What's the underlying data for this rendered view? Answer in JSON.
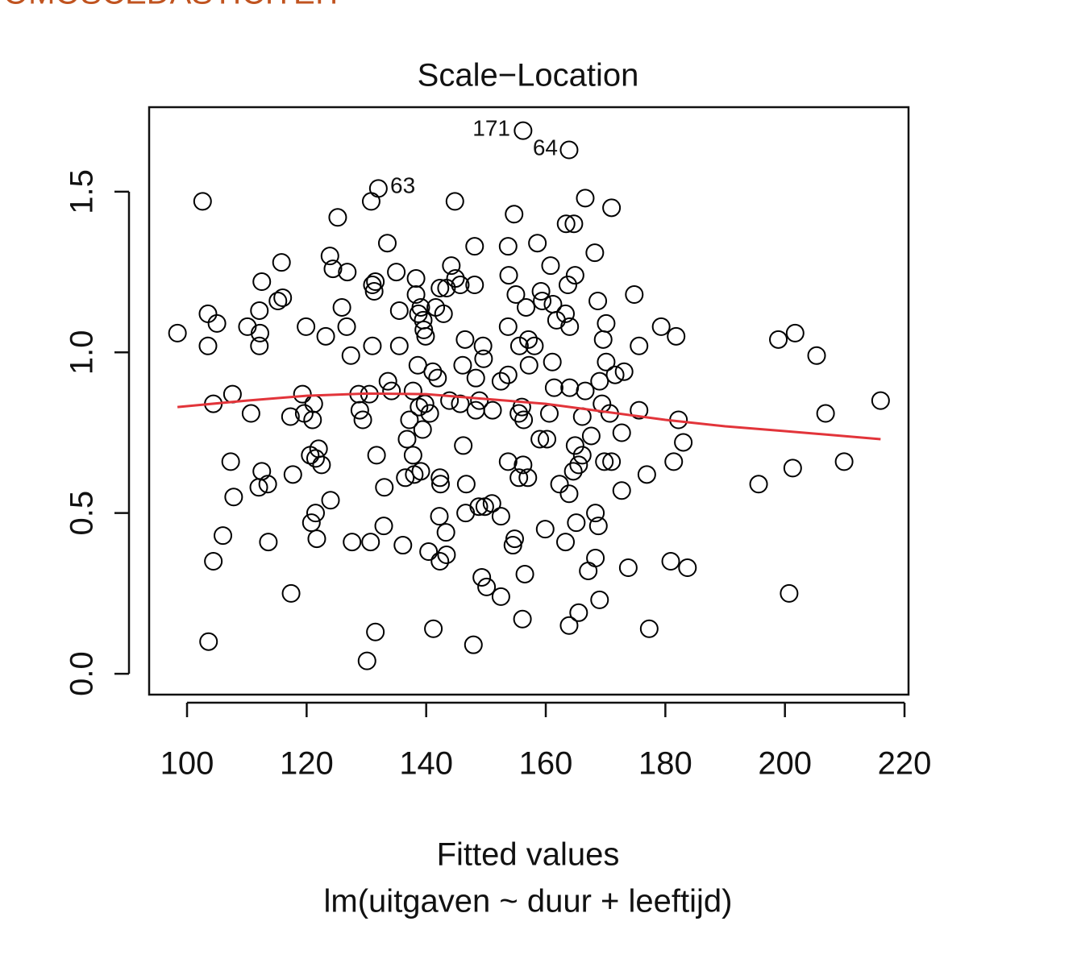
{
  "header": "OMOSCEDASTICITEIT",
  "chart_data": {
    "type": "scatter",
    "title": "Scale−Location",
    "x_label": "Fitted values",
    "caption": "lm(uitgaven ~ duur + leeftijd)",
    "annotations": [
      "171",
      "64",
      "63"
    ],
    "color": "#000000",
    "xlim": [
      93.66,
      220.67
    ],
    "ylim": [
      -0.065,
      1.763
    ],
    "xticks": [
      100,
      120,
      140,
      160,
      180,
      200,
      220
    ],
    "yticks": [
      {
        "value": 0,
        "label": "0.0"
      },
      0.5,
      {
        "value": 1,
        "label": "1.0"
      },
      1.5
    ],
    "x": [
      98.4,
      102.6,
      103.5,
      103.5,
      104.4,
      105,
      107.6,
      107.3,
      107.8,
      106,
      104.4,
      103.6,
      110.1,
      110.7,
      112.5,
      112.1,
      112.2,
      112.1,
      112.5,
      112,
      113.5,
      113.6,
      115.8,
      115.2,
      116,
      117.3,
      117.7,
      117.4,
      119.3,
      119.6,
      119.9,
      121.2,
      121,
      120.6,
      121.5,
      122,
      122.5,
      120.8,
      121.5,
      121.7,
      123.2,
      123.9,
      124.4,
      125.2,
      125.9,
      126.8,
      126.7,
      127.4,
      124,
      127.6,
      128.7,
      128.9,
      129.4,
      130.5,
      130.7,
      130.1,
      130.8,
      132,
      131,
      131.5,
      131.3,
      131,
      131.7,
      131.5,
      132.9,
      133,
      133.5,
      133.6,
      134.2,
      135,
      135.5,
      135.5,
      136.1,
      136.5,
      136.8,
      137.2,
      137.8,
      137.8,
      138,
      138.3,
      138.3,
      138.7,
      139.1,
      139.5,
      139.6,
      139.9,
      138.6,
      139.4,
      139.8,
      140.6,
      138.8,
      139.1,
      140.4,
      141.2,
      141.1,
      141.9,
      141.6,
      142.3,
      142.9,
      142.3,
      142.4,
      142.2,
      143.3,
      142.3,
      143.4,
      143.4,
      144.2,
      144.9,
      145.7,
      144.8,
      143.9,
      145.7,
      146.1,
      146.5,
      146.2,
      146.7,
      146.6,
      148.1,
      148.1,
      148.3,
      148.3,
      148.9,
      149.5,
      149.6,
      148.8,
      149.8,
      151,
      151.1,
      149.3,
      150.1,
      147.9,
      152.5,
      152.5,
      153.7,
      152.5,
      153.7,
      153.8,
      153.7,
      153.7,
      154.5,
      154.8,
      154.7,
      155,
      155.6,
      156,
      155.5,
      156.3,
      155.5,
      156.2,
      157,
      156.5,
      156.1,
      156.2,
      156.7,
      157.1,
      157.2,
      158.1,
      158.6,
      159.2,
      159.4,
      159,
      160.2,
      159.9,
      160.6,
      160.8,
      161.2,
      161.8,
      161.1,
      161.4,
      162.3,
      163.3,
      163.3,
      163.4,
      164,
      163.9,
      163.9,
      164.7,
      164,
      163.7,
      164.9,
      164.9,
      164.6,
      165.5,
      166.1,
      166.6,
      165.1,
      163.9,
      165.5,
      166.6,
      166.1,
      167.6,
      168.2,
      168.3,
      168.8,
      168.3,
      167.1,
      169,
      168.7,
      169,
      169.6,
      169.4,
      170.1,
      170.1,
      170.7,
      169.8,
      171,
      171,
      171.6,
      173.1,
      172.7,
      172.7,
      173.8,
      174.8,
      175.6,
      175.6,
      176.9,
      177.3,
      179.3,
      180.9,
      181.4,
      181.8,
      182.2,
      183,
      183.7,
      195.6,
      198.9,
      201.7,
      201.3,
      200.7,
      205.3,
      206.8,
      209.9,
      216
    ],
    "values": [
      1.06,
      1.47,
      1.12,
      1.02,
      0.84,
      1.09,
      0.87,
      0.66,
      0.55,
      0.43,
      0.35,
      0.1,
      1.08,
      0.81,
      1.22,
      1.13,
      1.06,
      1.02,
      0.63,
      0.58,
      0.59,
      0.41,
      1.28,
      1.16,
      1.17,
      0.8,
      0.62,
      0.25,
      0.87,
      0.81,
      1.08,
      0.84,
      0.79,
      0.68,
      0.67,
      0.7,
      0.65,
      0.47,
      0.5,
      0.42,
      1.05,
      1.3,
      1.26,
      1.42,
      1.14,
      1.25,
      1.08,
      0.99,
      0.54,
      0.41,
      0.87,
      0.82,
      0.79,
      0.87,
      0.41,
      0.04,
      1.47,
      1.51,
      1.21,
      1.22,
      1.19,
      1.02,
      0.68,
      0.13,
      0.46,
      0.58,
      1.34,
      0.91,
      0.88,
      1.25,
      1.13,
      1.02,
      0.4,
      0.61,
      0.73,
      0.79,
      0.88,
      0.68,
      0.62,
      1.23,
      1.18,
      1.12,
      1.14,
      1.1,
      1.07,
      1.05,
      0.96,
      0.76,
      0.84,
      0.81,
      0.83,
      0.63,
      0.38,
      0.14,
      0.94,
      0.92,
      1.14,
      1.2,
      1.12,
      0.61,
      0.59,
      0.49,
      0.44,
      0.35,
      0.37,
      1.2,
      1.27,
      1.23,
      1.21,
      1.47,
      0.85,
      0.84,
      0.96,
      1.04,
      0.71,
      0.59,
      0.5,
      1.33,
      1.21,
      0.92,
      0.82,
      0.85,
      1.02,
      0.98,
      0.52,
      0.52,
      0.53,
      0.82,
      0.3,
      0.27,
      0.09,
      0.24,
      0.91,
      0.93,
      0.49,
      1.33,
      1.24,
      1.08,
      0.66,
      0.4,
      0.42,
      1.43,
      1.18,
      1.02,
      0.83,
      0.81,
      0.79,
      0.61,
      0.65,
      0.61,
      0.31,
      0.17,
      1.69,
      1.14,
      1.04,
      0.96,
      1.02,
      1.34,
      1.19,
      1.16,
      0.73,
      0.73,
      0.45,
      0.81,
      1.27,
      1.15,
      1.1,
      0.97,
      0.89,
      0.59,
      0.41,
      1.12,
      1.4,
      0.89,
      1.63,
      0.56,
      1.4,
      1.08,
      1.21,
      1.24,
      0.71,
      0.63,
      0.65,
      0.8,
      1.48,
      0.47,
      0.15,
      0.19,
      0.88,
      0.68,
      0.74,
      1.31,
      0.5,
      0.46,
      0.36,
      0.32,
      0.23,
      1.16,
      0.91,
      1.04,
      0.84,
      1.09,
      0.97,
      0.81,
      0.66,
      0.66,
      1.45,
      0.93,
      0.94,
      0.75,
      0.57,
      0.33,
      1.18,
      1.02,
      0.82,
      0.62,
      0.14,
      1.08,
      0.35,
      0.66,
      1.05,
      0.79,
      0.72,
      0.33,
      0.59,
      1.04,
      1.06,
      0.64,
      0.25,
      0.99,
      0.81,
      0.66,
      0.85
    ],
    "smooth": {
      "color": "#e2343a",
      "x": [
        98.4,
        110,
        120,
        130,
        140,
        150,
        160,
        170,
        180,
        190,
        200,
        216
      ],
      "values": [
        0.83,
        0.85,
        0.865,
        0.872,
        0.87,
        0.855,
        0.84,
        0.815,
        0.79,
        0.77,
        0.755,
        0.73
      ]
    }
  }
}
